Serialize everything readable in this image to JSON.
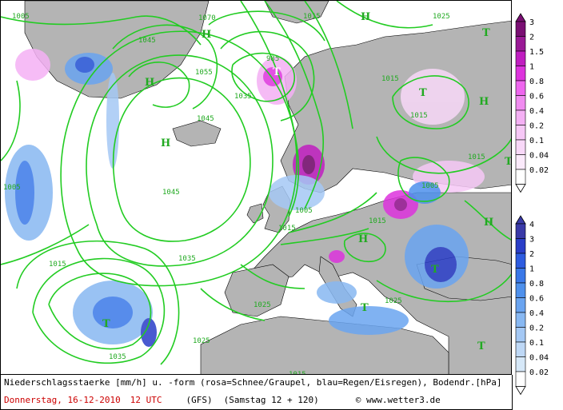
{
  "map": {
    "pressure_values": [
      "1005",
      "1070",
      "1015",
      "1025",
      "1045",
      "1055",
      "985",
      "1015",
      "1035",
      "1045",
      "1045",
      "1035",
      "1025",
      "1015",
      "1005",
      "1005",
      "1015",
      "1015",
      "1025",
      "1035",
      "1015",
      "1025",
      "1015",
      "1015",
      "1005"
    ],
    "high_symbol": "H",
    "low_symbol": "T",
    "line_color": "#22cc22",
    "land_color": "#b4b4b4",
    "sea_color": "#ffffff"
  },
  "legend_snow": {
    "values": [
      "3",
      "2",
      "1.5",
      "1",
      "0.8",
      "0.6",
      "0.4",
      "0.2",
      "0.1",
      "0.04",
      "0.02"
    ],
    "colors": [
      "#7a0f73",
      "#9a1a96",
      "#c01ec0",
      "#dd33dd",
      "#ee66ee",
      "#f08cf0",
      "#f4b0f4",
      "#f6c8f6",
      "#f8d8f8",
      "#fbeafb",
      "#ffffff"
    ]
  },
  "legend_rain": {
    "values": [
      "4",
      "3",
      "2",
      "1",
      "0.8",
      "0.6",
      "0.4",
      "0.2",
      "0.1",
      "0.04",
      "0.02"
    ],
    "colors": [
      "#3a3aa8",
      "#2a3ec8",
      "#2e5ce0",
      "#3a78e8",
      "#4e90ec",
      "#6aa4f0",
      "#88b8f2",
      "#a4c8f4",
      "#bed8f6",
      "#d6e8f8",
      "#ffffff"
    ]
  },
  "footer": {
    "line1": "Niederschlagsstaerke [mm/h] u. -form (rosa=Schnee/Graupel, blau=Regen/Eisregen), Bodendr.[hPa]",
    "date": "Donnerstag, 16-12-2010",
    "time": "12 UTC",
    "model": "(GFS)",
    "run": "(Samstag 12 + 120)",
    "copyright": "© www.wetter3.de"
  }
}
